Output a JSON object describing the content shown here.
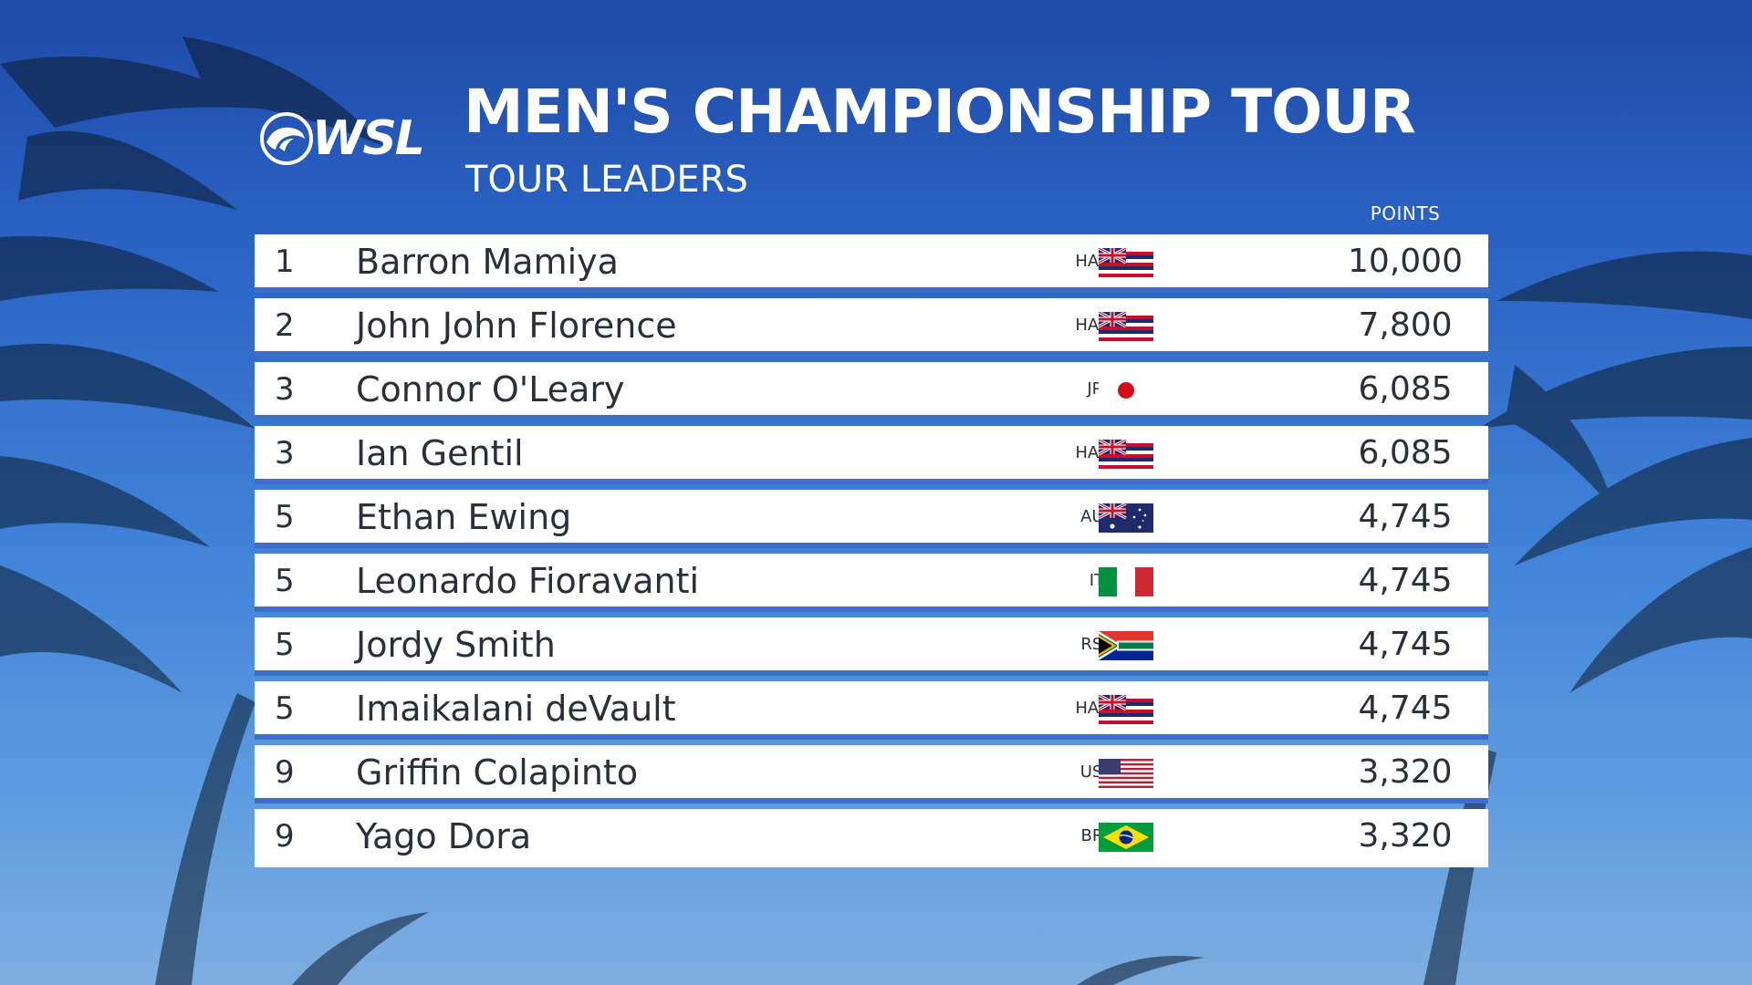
{
  "colors": {
    "sky_top": "#1f4aa8",
    "sky_bottom": "#7eaee0",
    "row_background": "#ffffff",
    "row_separator": "#3d6fc8",
    "text_dark": "#2b2f3a",
    "text_light": "#ffffff"
  },
  "header": {
    "logo_text": "WSL",
    "logo_icon": "wave-icon",
    "title": "MEN'S CHAMPIONSHIP TOUR",
    "subtitle": "TOUR LEADERS",
    "points_label": "POINTS"
  },
  "leaders": [
    {
      "rank": "1",
      "name": "Barron Mamiya",
      "country": "HAW",
      "flag": "hawaii-flag-icon",
      "points": "10,000"
    },
    {
      "rank": "2",
      "name": "John John Florence",
      "country": "HAW",
      "flag": "hawaii-flag-icon",
      "points": "7,800"
    },
    {
      "rank": "3",
      "name": "Connor O'Leary",
      "country": "JPN",
      "flag": "japan-flag-icon",
      "points": "6,085"
    },
    {
      "rank": "3",
      "name": "Ian Gentil",
      "country": "HAW",
      "flag": "hawaii-flag-icon",
      "points": "6,085"
    },
    {
      "rank": "5",
      "name": "Ethan Ewing",
      "country": "AUS",
      "flag": "australia-flag-icon",
      "points": "4,745"
    },
    {
      "rank": "5",
      "name": "Leonardo Fioravanti",
      "country": "ITA",
      "flag": "italy-flag-icon",
      "points": "4,745"
    },
    {
      "rank": "5",
      "name": "Jordy Smith",
      "country": "RSA",
      "flag": "south-africa-flag-icon",
      "points": "4,745"
    },
    {
      "rank": "5",
      "name": "Imaikalani deVault",
      "country": "HAW",
      "flag": "hawaii-flag-icon",
      "points": "4,745"
    },
    {
      "rank": "9",
      "name": "Griffin Colapinto",
      "country": "USA",
      "flag": "usa-flag-icon",
      "points": "3,320"
    },
    {
      "rank": "9",
      "name": "Yago Dora",
      "country": "BRA",
      "flag": "brazil-flag-icon",
      "points": "3,320"
    }
  ]
}
